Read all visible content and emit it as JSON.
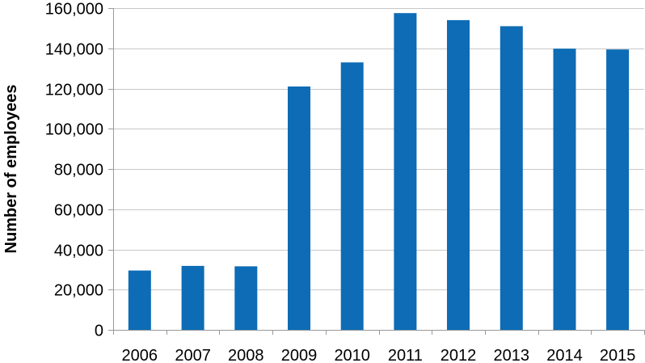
{
  "chart_data": {
    "type": "bar",
    "title": "",
    "xlabel": "",
    "ylabel": "Number of employees",
    "categories": [
      "2006",
      "2007",
      "2008",
      "2009",
      "2010",
      "2011",
      "2012",
      "2013",
      "2014",
      "2015"
    ],
    "values": [
      29500,
      31800,
      31600,
      121000,
      133000,
      157500,
      154000,
      151000,
      139800,
      139400
    ],
    "ylim": [
      0,
      160000
    ],
    "yticks": [
      0,
      20000,
      40000,
      60000,
      80000,
      100000,
      120000,
      140000,
      160000
    ],
    "ytick_labels": [
      "0",
      "20,000",
      "40,000",
      "60,000",
      "80,000",
      "100,000",
      "120,000",
      "140,000",
      "160,000"
    ],
    "grid": true,
    "legend": "none",
    "bar_color": "#0d6cb5",
    "grid_color": "#c8c8c8",
    "axis_color": "#999999"
  }
}
